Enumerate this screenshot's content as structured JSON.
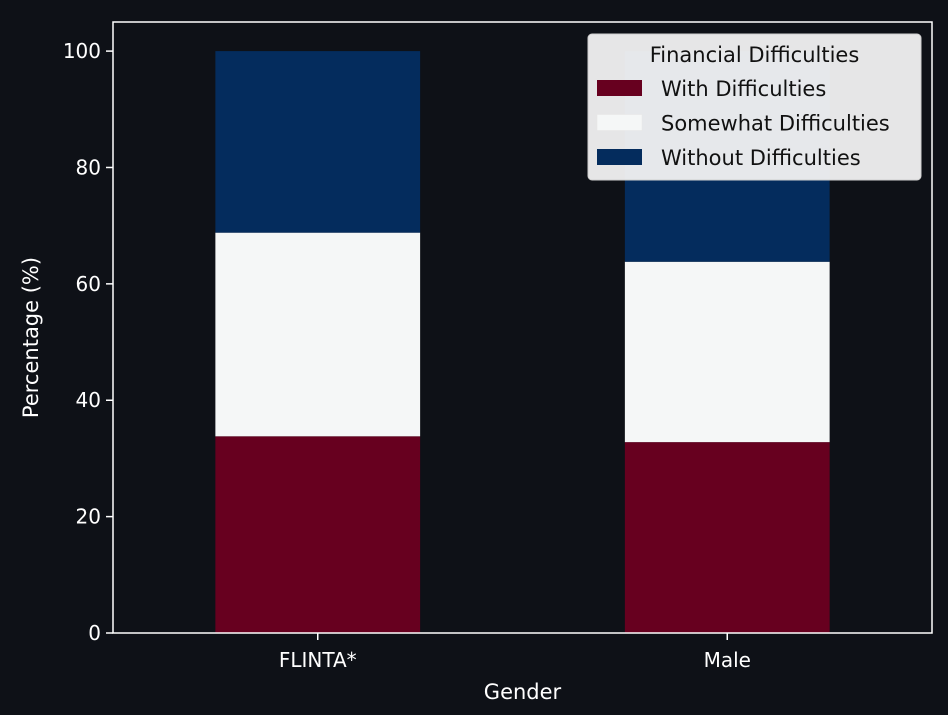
{
  "chart_data": {
    "type": "bar",
    "stacked": true,
    "xlabel": "Gender",
    "ylabel": "Percentage (%)",
    "categories": [
      "FLINTA*",
      "Male"
    ],
    "ylim": [
      0,
      105
    ],
    "yticks": [
      0,
      20,
      40,
      60,
      80,
      100
    ],
    "grid": false,
    "legend": {
      "title": "Financial Difficulties",
      "placement": "top-right"
    },
    "series": [
      {
        "name": "With Difficulties",
        "values": [
          33.8,
          32.8
        ],
        "color": "#67001f"
      },
      {
        "name": "Somewhat Difficulties",
        "values": [
          35.0,
          31.0
        ],
        "color": "#f5f7f7"
      },
      {
        "name": "Without Difficulties",
        "values": [
          31.2,
          36.2
        ],
        "color": "#042c5d"
      }
    ],
    "colors": {
      "background": "#0e1117",
      "axis": "#ffffff",
      "text": "#ffffff",
      "legend_background": "#f2f2f2"
    }
  }
}
